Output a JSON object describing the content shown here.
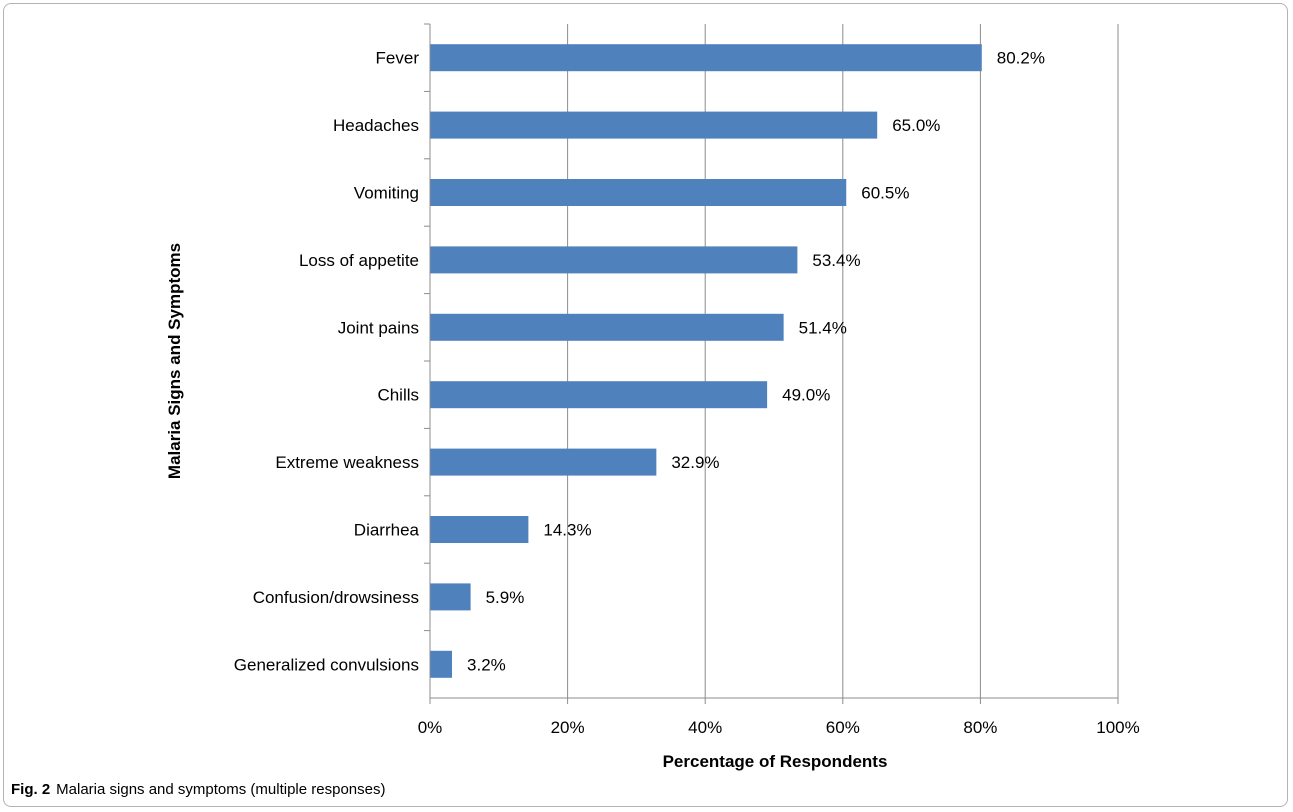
{
  "caption": {
    "label": "Fig. 2",
    "text": "Malaria signs and symptoms (multiple responses)"
  },
  "chart_data": {
    "type": "bar",
    "orientation": "horizontal",
    "title": "",
    "xlabel": "Percentage of Respondents",
    "ylabel": "Malaria Signs and Symptoms",
    "xlim": [
      0,
      100
    ],
    "xticks": [
      0,
      20,
      40,
      60,
      80,
      100
    ],
    "xtick_labels": [
      "0%",
      "20%",
      "40%",
      "60%",
      "80%",
      "100%"
    ],
    "grid": "vertical",
    "legend": "none",
    "bar_color": "#4f81bd",
    "categories": [
      "Fever",
      "Headaches",
      "Vomiting",
      "Loss of appetite",
      "Joint pains",
      "Chills",
      "Extreme weakness",
      "Diarrhea",
      "Confusion/drowsiness",
      "Generalized convulsions"
    ],
    "values": [
      80.2,
      65.0,
      60.5,
      53.4,
      51.4,
      49.0,
      32.9,
      14.3,
      5.9,
      3.2
    ],
    "value_labels": [
      "80.2%",
      "65.0%",
      "60.5%",
      "53.4%",
      "51.4%",
      "49.0%",
      "32.9%",
      "14.3%",
      "5.9%",
      "3.2%"
    ]
  }
}
